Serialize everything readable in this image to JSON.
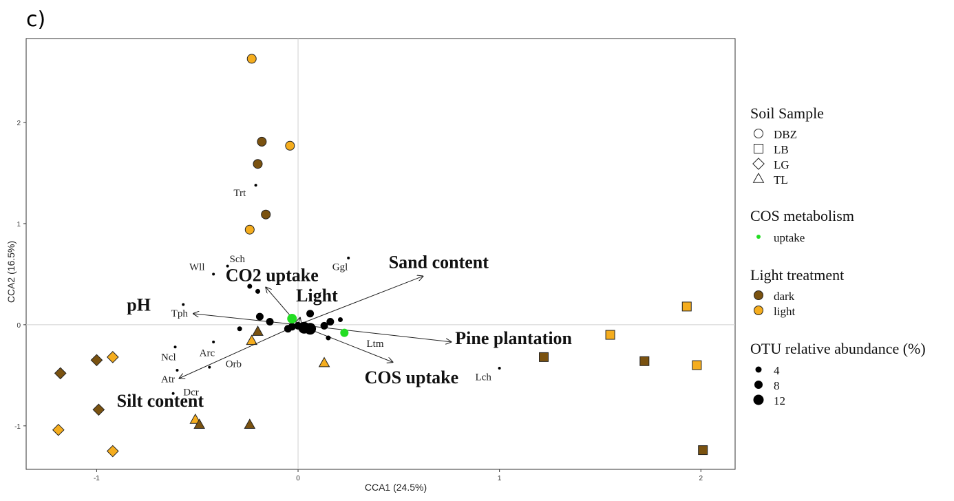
{
  "panel_label": "c)",
  "chart_data": {
    "type": "scatter",
    "subtype": "CCA biplot",
    "xlabel": "CCA1 (24.5%)",
    "ylabel": "CCA2 (16.5%)",
    "xlim": [
      -1.35,
      2.17
    ],
    "ylim": [
      -1.43,
      2.83
    ],
    "xticks": [
      -1,
      0,
      1,
      2
    ],
    "yticks": [
      -1,
      0,
      1,
      2
    ],
    "zero_lines": true,
    "colors": {
      "dark": "#7a5210",
      "light": "#f5ad1e",
      "uptake": "#22dd22",
      "otu": "#000000"
    },
    "samples": [
      {
        "soil": "DBZ",
        "light": "light",
        "x": -0.23,
        "y": 2.63
      },
      {
        "soil": "DBZ",
        "light": "dark",
        "x": -0.18,
        "y": 1.81
      },
      {
        "soil": "DBZ",
        "light": "light",
        "x": -0.04,
        "y": 1.77
      },
      {
        "soil": "DBZ",
        "light": "dark",
        "x": -0.2,
        "y": 1.59
      },
      {
        "soil": "DBZ",
        "light": "dark",
        "x": -0.16,
        "y": 1.09
      },
      {
        "soil": "DBZ",
        "light": "light",
        "x": -0.24,
        "y": 0.94
      },
      {
        "soil": "LB",
        "light": "light",
        "x": 1.93,
        "y": 0.18
      },
      {
        "soil": "LB",
        "light": "light",
        "x": 1.55,
        "y": -0.1
      },
      {
        "soil": "LB",
        "light": "dark",
        "x": 1.22,
        "y": -0.32
      },
      {
        "soil": "LB",
        "light": "dark",
        "x": 1.72,
        "y": -0.36
      },
      {
        "soil": "LB",
        "light": "light",
        "x": 1.98,
        "y": -0.4
      },
      {
        "soil": "LB",
        "light": "dark",
        "x": 2.01,
        "y": -1.24
      },
      {
        "soil": "LG",
        "light": "dark",
        "x": -1.0,
        "y": -0.35
      },
      {
        "soil": "LG",
        "light": "light",
        "x": -0.92,
        "y": -0.32
      },
      {
        "soil": "LG",
        "light": "dark",
        "x": -1.18,
        "y": -0.48
      },
      {
        "soil": "LG",
        "light": "dark",
        "x": -0.99,
        "y": -0.84
      },
      {
        "soil": "LG",
        "light": "light",
        "x": -1.19,
        "y": -1.04
      },
      {
        "soil": "LG",
        "light": "light",
        "x": -0.92,
        "y": -1.25
      },
      {
        "soil": "TL",
        "light": "dark",
        "x": -0.2,
        "y": -0.07
      },
      {
        "soil": "TL",
        "light": "light",
        "x": -0.23,
        "y": -0.16
      },
      {
        "soil": "TL",
        "light": "light",
        "x": 0.13,
        "y": -0.38
      },
      {
        "soil": "TL",
        "light": "light",
        "x": -0.51,
        "y": -0.94
      },
      {
        "soil": "TL",
        "light": "dark",
        "x": -0.49,
        "y": -0.99
      },
      {
        "soil": "TL",
        "light": "dark",
        "x": -0.24,
        "y": -0.99
      }
    ],
    "species": [
      {
        "label": "Trt",
        "x": -0.21,
        "y": 1.38,
        "lx": -0.32,
        "ly": 1.27,
        "size": 1
      },
      {
        "label": "Sch",
        "x": -0.35,
        "y": 0.58,
        "lx": -0.34,
        "ly": 0.62,
        "size": 1
      },
      {
        "label": "Wll",
        "x": -0.42,
        "y": 0.5,
        "lx": -0.54,
        "ly": 0.54,
        "size": 1
      },
      {
        "label": "Ggl",
        "x": 0.25,
        "y": 0.66,
        "lx": 0.17,
        "ly": 0.54,
        "size": 1
      },
      {
        "label": "Tph",
        "x": -0.57,
        "y": 0.2,
        "lx": -0.63,
        "ly": 0.08,
        "size": 1
      },
      {
        "label": "Ltm",
        "x": 0.23,
        "y": -0.08,
        "lx": 0.34,
        "ly": -0.22,
        "size": 2,
        "uptake": true
      },
      {
        "label": "Lch",
        "x": 1.0,
        "y": -0.43,
        "lx": 0.88,
        "ly": -0.55,
        "size": 1
      },
      {
        "label": "Ncl",
        "x": -0.61,
        "y": -0.22,
        "lx": -0.68,
        "ly": -0.35,
        "size": 1
      },
      {
        "label": "Arc",
        "x": -0.42,
        "y": -0.17,
        "lx": -0.49,
        "ly": -0.31,
        "size": 1
      },
      {
        "label": "Orb",
        "x": -0.44,
        "y": -0.42,
        "lx": -0.36,
        "ly": -0.42,
        "size": 1
      },
      {
        "label": "Atr",
        "x": -0.6,
        "y": -0.45,
        "lx": -0.68,
        "ly": -0.57,
        "size": 1
      },
      {
        "label": "Dcr",
        "x": -0.62,
        "y": -0.68,
        "lx": -0.57,
        "ly": -0.7,
        "size": 1
      }
    ],
    "otu_points": [
      {
        "x": -0.2,
        "y": 0.33,
        "size": 1
      },
      {
        "x": -0.24,
        "y": 0.38,
        "size": 1
      },
      {
        "x": 0.21,
        "y": 0.05,
        "size": 1
      },
      {
        "x": -0.29,
        "y": -0.04,
        "size": 1
      },
      {
        "x": 0.15,
        "y": -0.13,
        "size": 1
      },
      {
        "x": -0.19,
        "y": 0.08,
        "size": 2
      },
      {
        "x": -0.14,
        "y": 0.03,
        "size": 2
      },
      {
        "x": 0.06,
        "y": 0.11,
        "size": 2
      },
      {
        "x": 0.13,
        "y": -0.01,
        "size": 2
      },
      {
        "x": 0.16,
        "y": 0.03,
        "size": 2
      },
      {
        "x": -0.03,
        "y": -0.02,
        "size": 2
      },
      {
        "x": -0.05,
        "y": -0.04,
        "size": 2
      },
      {
        "x": 0.0,
        "y": -0.01,
        "size": 2
      },
      {
        "x": -0.03,
        "y": 0.06,
        "size": 2,
        "uptake": true
      },
      {
        "x": 0.03,
        "y": -0.03,
        "size": 3
      },
      {
        "x": 0.06,
        "y": -0.04,
        "size": 3
      }
    ],
    "vectors": [
      {
        "label": "Sand content",
        "x": 0.62,
        "y": 0.48,
        "lx": 0.45,
        "ly": 0.56
      },
      {
        "label": "CO2 uptake",
        "x": -0.16,
        "y": 0.37,
        "lx": -0.36,
        "ly": 0.43
      },
      {
        "label": "Light",
        "x": 0.01,
        "y": 0.07,
        "lx": -0.01,
        "ly": 0.23
      },
      {
        "label": "pH",
        "x": -0.52,
        "y": 0.11,
        "lx": -0.85,
        "ly": 0.14
      },
      {
        "label": "Pine plantation",
        "x": 0.76,
        "y": -0.17,
        "lx": 0.78,
        "ly": -0.19
      },
      {
        "label": "COS uptake",
        "x": 0.47,
        "y": -0.37,
        "lx": 0.33,
        "ly": -0.58
      },
      {
        "label": "Silt content",
        "x": -0.59,
        "y": -0.53,
        "lx": -0.9,
        "ly": -0.81
      }
    ],
    "legend": {
      "placement": "right",
      "soil_title": "Soil Sample",
      "soil_items": [
        {
          "label": "DBZ",
          "shape": "circle"
        },
        {
          "label": "LB",
          "shape": "square"
        },
        {
          "label": "LG",
          "shape": "diamond"
        },
        {
          "label": "TL",
          "shape": "triangle"
        }
      ],
      "cos_title": "COS metabolism",
      "cos_items": [
        {
          "label": "uptake"
        }
      ],
      "light_title": "Light treatment",
      "light_items": [
        {
          "label": "dark",
          "key": "dark"
        },
        {
          "label": "light",
          "key": "light"
        }
      ],
      "otu_title": "OTU relative abundance (%)",
      "otu_items": [
        {
          "label": "4",
          "size": 1
        },
        {
          "label": "8",
          "size": 2
        },
        {
          "label": "12",
          "size": 3
        }
      ]
    }
  }
}
